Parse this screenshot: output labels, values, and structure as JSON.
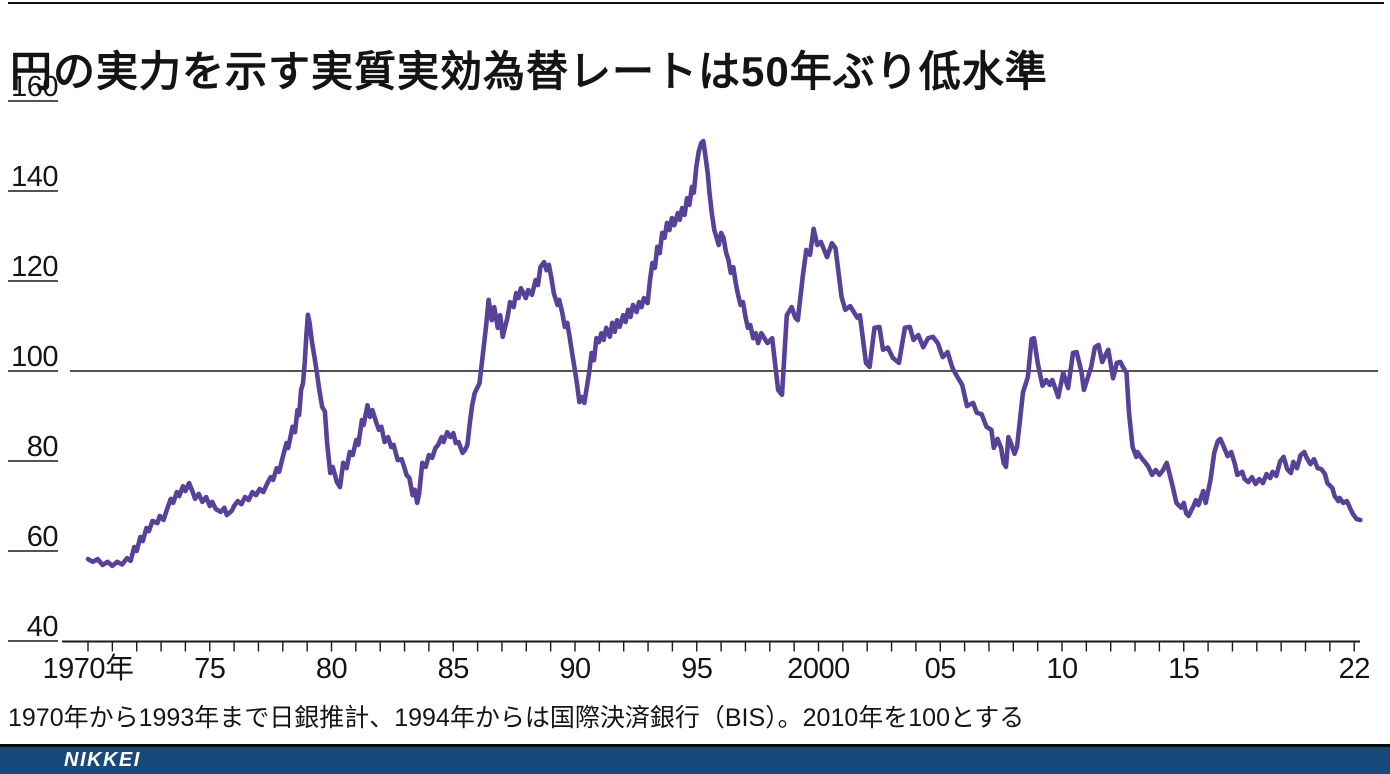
{
  "source_note": "1970年から1993年まで日銀推計、1994年からは国際決済銀行（BIS）。2010年を100とする",
  "brand": {
    "logo_text": "NIKKEI",
    "bar_color": "#17497b"
  },
  "chart_data": {
    "type": "line",
    "title": "円の実力を示す実質実効為替レートは50年ぶり低水準",
    "xlabel": "",
    "ylabel": "",
    "index_base_note": "2010年=100",
    "line_color": "#584199",
    "axis_color": "#1a1a1a",
    "grid": "single horizontal reference line at 100",
    "legend": "none",
    "reference_line_y": 100,
    "y_ticks": [
      160,
      140,
      120,
      100,
      80,
      60,
      40
    ],
    "y_axis_min": 40,
    "y_axis_max": 160,
    "x_min": 1970,
    "x_max": 2022.35,
    "x_tick_years_minor_step": 1,
    "x_tick_labels": [
      {
        "year": 1970,
        "label": "1970年"
      },
      {
        "year": 1975,
        "label": "75"
      },
      {
        "year": 1980,
        "label": "80"
      },
      {
        "year": 1985,
        "label": "85"
      },
      {
        "year": 1990,
        "label": "90"
      },
      {
        "year": 1995,
        "label": "95"
      },
      {
        "year": 2000,
        "label": "2000"
      },
      {
        "year": 2005,
        "label": "05"
      },
      {
        "year": 2010,
        "label": "10"
      },
      {
        "year": 2015,
        "label": "15"
      },
      {
        "year": 2022,
        "label": "22"
      }
    ],
    "points": [
      [
        1970,
        58.2
      ],
      [
        1970.2,
        57.6
      ],
      [
        1970.4,
        58.2
      ],
      [
        1970.6,
        56.9
      ],
      [
        1970.8,
        57.6
      ],
      [
        1971,
        56.7
      ],
      [
        1971.2,
        57.6
      ],
      [
        1971.4,
        57
      ],
      [
        1971.6,
        58.4
      ],
      [
        1971.75,
        57.8
      ],
      [
        1971.9,
        60.9
      ],
      [
        1972,
        60
      ],
      [
        1972.15,
        63.1
      ],
      [
        1972.25,
        62.2
      ],
      [
        1972.4,
        65.1
      ],
      [
        1972.5,
        64.4
      ],
      [
        1972.65,
        66.7
      ],
      [
        1972.85,
        66.2
      ],
      [
        1972.95,
        67.8
      ],
      [
        1973.1,
        66.9
      ],
      [
        1973.25,
        69.3
      ],
      [
        1973.4,
        71.6
      ],
      [
        1973.5,
        70.7
      ],
      [
        1973.65,
        73.1
      ],
      [
        1973.75,
        72.2
      ],
      [
        1973.9,
        74.4
      ],
      [
        1974,
        73.3
      ],
      [
        1974.15,
        75.1
      ],
      [
        1974.3,
        73.1
      ],
      [
        1974.4,
        71.6
      ],
      [
        1974.55,
        72.7
      ],
      [
        1974.7,
        70.9
      ],
      [
        1974.85,
        72
      ],
      [
        1975,
        70
      ],
      [
        1975.1,
        70.9
      ],
      [
        1975.25,
        69.3
      ],
      [
        1975.45,
        68.7
      ],
      [
        1975.6,
        69.6
      ],
      [
        1975.7,
        68
      ],
      [
        1975.9,
        68.9
      ],
      [
        1976,
        70
      ],
      [
        1976.15,
        71.1
      ],
      [
        1976.3,
        70.4
      ],
      [
        1976.45,
        72
      ],
      [
        1976.6,
        71.3
      ],
      [
        1976.75,
        73.1
      ],
      [
        1976.9,
        72.4
      ],
      [
        1977.05,
        73.8
      ],
      [
        1977.2,
        73.1
      ],
      [
        1977.35,
        74.9
      ],
      [
        1977.5,
        76.4
      ],
      [
        1977.6,
        75.8
      ],
      [
        1977.75,
        78.4
      ],
      [
        1977.85,
        77.6
      ],
      [
        1978,
        80.9
      ],
      [
        1978.15,
        84
      ],
      [
        1978.22,
        82.9
      ],
      [
        1978.4,
        87.6
      ],
      [
        1978.5,
        86.4
      ],
      [
        1978.6,
        91.3
      ],
      [
        1978.67,
        90.2
      ],
      [
        1978.75,
        95.8
      ],
      [
        1978.83,
        97.3
      ],
      [
        1978.9,
        101.8
      ],
      [
        1978.97,
        108
      ],
      [
        1979.03,
        112.5
      ],
      [
        1979.1,
        110.7
      ],
      [
        1979.2,
        106.4
      ],
      [
        1979.3,
        103.1
      ],
      [
        1979.4,
        99.6
      ],
      [
        1979.5,
        95.8
      ],
      [
        1979.62,
        92
      ],
      [
        1979.73,
        91
      ],
      [
        1979.82,
        84
      ],
      [
        1979.95,
        77.3
      ],
      [
        1980.05,
        78.7
      ],
      [
        1980.22,
        75.3
      ],
      [
        1980.35,
        74.2
      ],
      [
        1980.48,
        79.6
      ],
      [
        1980.62,
        78.4
      ],
      [
        1980.75,
        82
      ],
      [
        1980.87,
        81.3
      ],
      [
        1981.02,
        84.7
      ],
      [
        1981.1,
        83.6
      ],
      [
        1981.25,
        89.1
      ],
      [
        1981.32,
        88
      ],
      [
        1981.48,
        92.4
      ],
      [
        1981.58,
        89.8
      ],
      [
        1981.68,
        91.3
      ],
      [
        1981.85,
        88.4
      ],
      [
        1981.95,
        86.9
      ],
      [
        1982.05,
        87.6
      ],
      [
        1982.18,
        84.2
      ],
      [
        1982.32,
        85.3
      ],
      [
        1982.45,
        83.1
      ],
      [
        1982.55,
        83.6
      ],
      [
        1982.72,
        80.2
      ],
      [
        1982.88,
        80.4
      ],
      [
        1983,
        78.4
      ],
      [
        1983.08,
        76.9
      ],
      [
        1983.2,
        76.2
      ],
      [
        1983.33,
        72.4
      ],
      [
        1983.42,
        73.6
      ],
      [
        1983.52,
        70.7
      ],
      [
        1983.6,
        72.9
      ],
      [
        1983.73,
        79.6
      ],
      [
        1983.87,
        78.7
      ],
      [
        1984,
        81.3
      ],
      [
        1984.13,
        80.7
      ],
      [
        1984.27,
        82.9
      ],
      [
        1984.38,
        83.6
      ],
      [
        1984.52,
        85.3
      ],
      [
        1984.6,
        84.2
      ],
      [
        1984.75,
        86.4
      ],
      [
        1984.88,
        85.3
      ],
      [
        1985,
        86.2
      ],
      [
        1985.1,
        84
      ],
      [
        1985.22,
        84.2
      ],
      [
        1985.38,
        81.8
      ],
      [
        1985.48,
        82.4
      ],
      [
        1985.58,
        83.6
      ],
      [
        1985.68,
        88.4
      ],
      [
        1985.78,
        92.4
      ],
      [
        1985.88,
        95.1
      ],
      [
        1985.98,
        96.2
      ],
      [
        1986.08,
        97.3
      ],
      [
        1986.2,
        103
      ],
      [
        1986.35,
        110
      ],
      [
        1986.45,
        115.8
      ],
      [
        1986.58,
        111.3
      ],
      [
        1986.68,
        114.2
      ],
      [
        1986.83,
        109.6
      ],
      [
        1986.93,
        112.4
      ],
      [
        1987.03,
        107.6
      ],
      [
        1987.13,
        109.8
      ],
      [
        1987.23,
        112
      ],
      [
        1987.33,
        115.3
      ],
      [
        1987.48,
        114.2
      ],
      [
        1987.58,
        117.3
      ],
      [
        1987.68,
        116.2
      ],
      [
        1987.78,
        118.4
      ],
      [
        1987.88,
        117.3
      ],
      [
        1987.98,
        116.2
      ],
      [
        1988.08,
        118
      ],
      [
        1988.23,
        116.9
      ],
      [
        1988.38,
        120.2
      ],
      [
        1988.48,
        119.1
      ],
      [
        1988.58,
        123.1
      ],
      [
        1988.73,
        124.2
      ],
      [
        1988.83,
        122.4
      ],
      [
        1988.93,
        123.6
      ],
      [
        1989.03,
        120.7
      ],
      [
        1989.13,
        117.3
      ],
      [
        1989.28,
        114.7
      ],
      [
        1989.35,
        115.8
      ],
      [
        1989.48,
        112.9
      ],
      [
        1989.58,
        109.8
      ],
      [
        1989.68,
        110.7
      ],
      [
        1989.78,
        107.6
      ],
      [
        1989.88,
        104
      ],
      [
        1989.98,
        100.7
      ],
      [
        1990.08,
        97.3
      ],
      [
        1990.18,
        93.1
      ],
      [
        1990.28,
        94.2
      ],
      [
        1990.38,
        92.9
      ],
      [
        1990.48,
        96.2
      ],
      [
        1990.58,
        99.6
      ],
      [
        1990.68,
        104
      ],
      [
        1990.78,
        102.4
      ],
      [
        1990.88,
        107.3
      ],
      [
        1990.98,
        106.4
      ],
      [
        1991.08,
        108.4
      ],
      [
        1991.18,
        106.9
      ],
      [
        1991.28,
        109.6
      ],
      [
        1991.43,
        107.6
      ],
      [
        1991.53,
        110.7
      ],
      [
        1991.63,
        108.7
      ],
      [
        1991.73,
        111.3
      ],
      [
        1991.83,
        109.8
      ],
      [
        1991.98,
        112.4
      ],
      [
        1992.08,
        110.9
      ],
      [
        1992.18,
        113.6
      ],
      [
        1992.28,
        112
      ],
      [
        1992.38,
        114.7
      ],
      [
        1992.53,
        113.1
      ],
      [
        1992.63,
        115.3
      ],
      [
        1992.73,
        114.2
      ],
      [
        1992.83,
        116.2
      ],
      [
        1992.98,
        115.1
      ],
      [
        1993.08,
        120.2
      ],
      [
        1993.18,
        124
      ],
      [
        1993.28,
        122.9
      ],
      [
        1993.38,
        127.6
      ],
      [
        1993.48,
        126.2
      ],
      [
        1993.58,
        130.7
      ],
      [
        1993.68,
        129.6
      ],
      [
        1993.78,
        132.9
      ],
      [
        1993.88,
        131.3
      ],
      [
        1993.98,
        134
      ],
      [
        1994.08,
        132.4
      ],
      [
        1994.22,
        135.1
      ],
      [
        1994.3,
        133.6
      ],
      [
        1994.4,
        136.2
      ],
      [
        1994.5,
        134.7
      ],
      [
        1994.6,
        138.4
      ],
      [
        1994.7,
        136.9
      ],
      [
        1994.8,
        140.9
      ],
      [
        1994.88,
        139.6
      ],
      [
        1994.98,
        145.3
      ],
      [
        1995.08,
        148.7
      ],
      [
        1995.18,
        150.6
      ],
      [
        1995.27,
        151.1
      ],
      [
        1995.35,
        148
      ],
      [
        1995.45,
        144
      ],
      [
        1995.52,
        139.8
      ],
      [
        1995.62,
        135.1
      ],
      [
        1995.72,
        131.3
      ],
      [
        1995.82,
        129.6
      ],
      [
        1995.9,
        128
      ],
      [
        1996,
        130.7
      ],
      [
        1996.1,
        129.6
      ],
      [
        1996.2,
        126.4
      ],
      [
        1996.3,
        124.7
      ],
      [
        1996.4,
        121.8
      ],
      [
        1996.5,
        123.1
      ],
      [
        1996.6,
        119.6
      ],
      [
        1996.7,
        116.9
      ],
      [
        1996.8,
        114.7
      ],
      [
        1996.9,
        115.3
      ],
      [
        1997,
        112
      ],
      [
        1997.1,
        109.6
      ],
      [
        1997.2,
        110.2
      ],
      [
        1997.32,
        107.3
      ],
      [
        1997.42,
        108.4
      ],
      [
        1997.52,
        106.2
      ],
      [
        1997.65,
        108.4
      ],
      [
        1997.9,
        106.2
      ],
      [
        1998.1,
        107.3
      ],
      [
        1998.34,
        95.8
      ],
      [
        1998.5,
        94.7
      ],
      [
        1998.7,
        112.4
      ],
      [
        1998.9,
        114.2
      ],
      [
        1999.05,
        111.8
      ],
      [
        1999.15,
        111.3
      ],
      [
        1999.35,
        120.9
      ],
      [
        1999.5,
        126.9
      ],
      [
        1999.65,
        125.8
      ],
      [
        1999.8,
        131.6
      ],
      [
        1999.95,
        128
      ],
      [
        2000.1,
        128.7
      ],
      [
        2000.35,
        125.3
      ],
      [
        2000.55,
        128.4
      ],
      [
        2000.7,
        127.3
      ],
      [
        2000.95,
        116.4
      ],
      [
        2001.1,
        113.6
      ],
      [
        2001.3,
        114.4
      ],
      [
        2001.6,
        111.8
      ],
      [
        2001.7,
        112.4
      ],
      [
        2001.95,
        101.8
      ],
      [
        2002.1,
        100.9
      ],
      [
        2002.3,
        109.6
      ],
      [
        2002.5,
        109.8
      ],
      [
        2002.65,
        104.7
      ],
      [
        2002.85,
        105.2
      ],
      [
        2003.05,
        102.9
      ],
      [
        2003.3,
        101.8
      ],
      [
        2003.55,
        109.6
      ],
      [
        2003.75,
        109.8
      ],
      [
        2003.9,
        106.9
      ],
      [
        2004.1,
        108
      ],
      [
        2004.3,
        105.3
      ],
      [
        2004.5,
        107.3
      ],
      [
        2004.7,
        107.6
      ],
      [
        2004.9,
        106.2
      ],
      [
        2005.1,
        103.1
      ],
      [
        2005.3,
        104.2
      ],
      [
        2005.5,
        100.7
      ],
      [
        2005.7,
        98.7
      ],
      [
        2005.9,
        96.9
      ],
      [
        2006.1,
        92.2
      ],
      [
        2006.35,
        92.9
      ],
      [
        2006.5,
        90.7
      ],
      [
        2006.7,
        90.4
      ],
      [
        2006.9,
        87.6
      ],
      [
        2007.1,
        86.9
      ],
      [
        2007.2,
        82.9
      ],
      [
        2007.35,
        84.9
      ],
      [
        2007.5,
        82.9
      ],
      [
        2007.6,
        79.6
      ],
      [
        2007.7,
        78.7
      ],
      [
        2007.8,
        85.3
      ],
      [
        2007.9,
        84
      ],
      [
        2008.05,
        81.6
      ],
      [
        2008.15,
        83.1
      ],
      [
        2008.4,
        95.3
      ],
      [
        2008.6,
        98.7
      ],
      [
        2008.75,
        107.1
      ],
      [
        2008.85,
        107.3
      ],
      [
        2009,
        101.8
      ],
      [
        2009.2,
        96.7
      ],
      [
        2009.35,
        98
      ],
      [
        2009.5,
        96.9
      ],
      [
        2009.6,
        98
      ],
      [
        2009.85,
        94.2
      ],
      [
        2010.05,
        99.6
      ],
      [
        2010.25,
        96.2
      ],
      [
        2010.45,
        104
      ],
      [
        2010.6,
        104.2
      ],
      [
        2010.8,
        99.8
      ],
      [
        2010.9,
        95.8
      ],
      [
        2011.05,
        98.4
      ],
      [
        2011.2,
        100.9
      ],
      [
        2011.35,
        105.3
      ],
      [
        2011.5,
        105.8
      ],
      [
        2011.65,
        102
      ],
      [
        2011.85,
        104.2
      ],
      [
        2011.9,
        104.7
      ],
      [
        2012.1,
        98.4
      ],
      [
        2012.25,
        101.8
      ],
      [
        2012.4,
        102
      ],
      [
        2012.5,
        100.9
      ],
      [
        2012.65,
        99.6
      ],
      [
        2012.75,
        90.7
      ],
      [
        2012.9,
        83.1
      ],
      [
        2013.05,
        80.9
      ],
      [
        2013.1,
        82
      ],
      [
        2013.3,
        80.4
      ],
      [
        2013.4,
        79.8
      ],
      [
        2013.55,
        78.7
      ],
      [
        2013.7,
        76.9
      ],
      [
        2013.85,
        78
      ],
      [
        2014,
        76.9
      ],
      [
        2014.15,
        78
      ],
      [
        2014.3,
        79.6
      ],
      [
        2014.45,
        76.4
      ],
      [
        2014.55,
        74.2
      ],
      [
        2014.7,
        70.7
      ],
      [
        2014.9,
        69.6
      ],
      [
        2015,
        70.7
      ],
      [
        2015.1,
        68.4
      ],
      [
        2015.2,
        67.8
      ],
      [
        2015.4,
        70
      ],
      [
        2015.5,
        71.3
      ],
      [
        2015.6,
        70.2
      ],
      [
        2015.8,
        73.3
      ],
      [
        2015.9,
        70.7
      ],
      [
        2016.1,
        75.8
      ],
      [
        2016.25,
        81.8
      ],
      [
        2016.4,
        84.4
      ],
      [
        2016.5,
        84.9
      ],
      [
        2016.65,
        83.1
      ],
      [
        2016.8,
        81.1
      ],
      [
        2016.95,
        82
      ],
      [
        2017.1,
        79.3
      ],
      [
        2017.2,
        76.9
      ],
      [
        2017.4,
        77.6
      ],
      [
        2017.5,
        76
      ],
      [
        2017.65,
        75.3
      ],
      [
        2017.8,
        76.4
      ],
      [
        2017.95,
        74.9
      ],
      [
        2018.1,
        76
      ],
      [
        2018.25,
        75.1
      ],
      [
        2018.4,
        77.1
      ],
      [
        2018.55,
        76.2
      ],
      [
        2018.65,
        77.6
      ],
      [
        2018.8,
        76.7
      ],
      [
        2018.95,
        79.8
      ],
      [
        2019.1,
        80.9
      ],
      [
        2019.25,
        78.2
      ],
      [
        2019.4,
        77.3
      ],
      [
        2019.5,
        79.8
      ],
      [
        2019.65,
        78.4
      ],
      [
        2019.8,
        81.3
      ],
      [
        2019.95,
        82
      ],
      [
        2020.05,
        80.7
      ],
      [
        2020.2,
        79.3
      ],
      [
        2020.35,
        80.4
      ],
      [
        2020.5,
        78.4
      ],
      [
        2020.65,
        78.2
      ],
      [
        2020.8,
        77.1
      ],
      [
        2020.9,
        75.1
      ],
      [
        2021.1,
        74
      ],
      [
        2021.2,
        72.2
      ],
      [
        2021.35,
        71.1
      ],
      [
        2021.4,
        71.8
      ],
      [
        2021.55,
        70.7
      ],
      [
        2021.7,
        71.1
      ],
      [
        2021.85,
        69.3
      ],
      [
        2021.95,
        68.2
      ],
      [
        2022.1,
        67.1
      ],
      [
        2022.25,
        66.9
      ]
    ]
  }
}
